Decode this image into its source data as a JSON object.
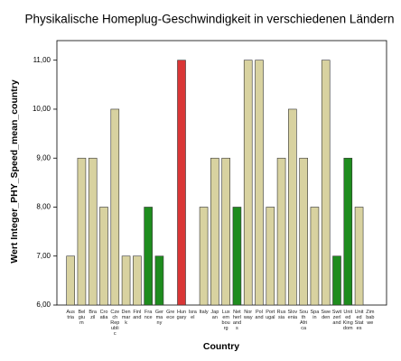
{
  "chart_data": {
    "type": "bar",
    "title": "Physikalische Homeplug-Geschwindigkeit in verschiedenen Ländern",
    "y_label": "Wert Integer_PHY_Speed_mean_country",
    "x_label": "Country",
    "categories": [
      "Aus\ntria",
      "Bel\ngiu\nm",
      "Bra\nzil",
      "Cro\natia",
      "Cze\nch\nRep\nubli\nc",
      "Den\nmar\nk",
      "Finl\nand",
      "Fra\nnce",
      "Ger\nma\nny",
      "Gre\nece",
      "Hun\ngary",
      "Isra\nel",
      "Italy",
      "Jap\nan",
      "Lux\nem\nbou\nrg",
      "Net\nherl\nand\ns",
      "Nor\nway",
      "Pol\nand",
      "Port\nugal",
      "Rus\nsia",
      "Slov\nenia",
      "Sou\nth\nAfri\nca",
      "Spa\nin",
      "Swe\nden",
      "Swit\nzerl\nand",
      "Unit\ned\nKing\ndom",
      "Unit\ned\nStat\nes",
      "Zim\nbab\nwe"
    ],
    "values": [
      7,
      9,
      9,
      8,
      10,
      7,
      7,
      8,
      7,
      null,
      11,
      null,
      8,
      9,
      9,
      8,
      11,
      11,
      8,
      9,
      10,
      9,
      8,
      11,
      7,
      9,
      8,
      null
    ],
    "colors": [
      "#d8d2a0",
      "#d8d2a0",
      "#d8d2a0",
      "#d8d2a0",
      "#d8d2a0",
      "#d8d2a0",
      "#d8d2a0",
      "#1e8c1e",
      "#1e8c1e",
      "#d8d2a0",
      "#d93636",
      "#d8d2a0",
      "#d8d2a0",
      "#d8d2a0",
      "#d8d2a0",
      "#1e8c1e",
      "#d8d2a0",
      "#d8d2a0",
      "#d8d2a0",
      "#d8d2a0",
      "#d8d2a0",
      "#d8d2a0",
      "#d8d2a0",
      "#d8d2a0",
      "#1e8c1e",
      "#1e8c1e",
      "#d8d2a0",
      "#d8d2a0"
    ],
    "ylim": [
      6,
      11.4
    ],
    "yticks": [
      {
        "value": 6,
        "label": "6,00"
      },
      {
        "value": 7,
        "label": "7,00"
      },
      {
        "value": 8,
        "label": "8,00"
      },
      {
        "value": 9,
        "label": "9,00"
      },
      {
        "value": 10,
        "label": "10,00"
      },
      {
        "value": 11,
        "label": "11,00"
      }
    ]
  }
}
